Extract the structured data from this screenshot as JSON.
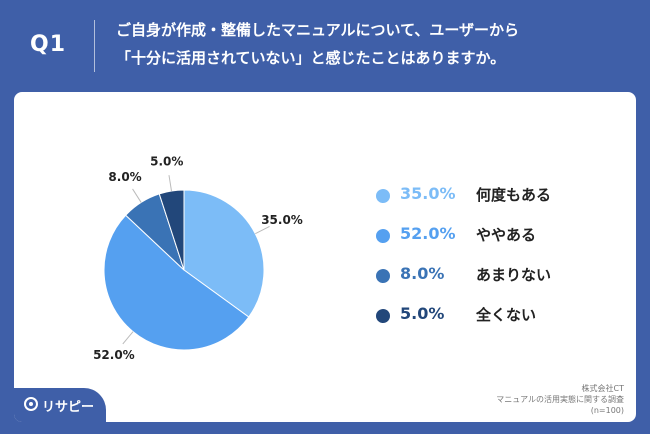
{
  "header": {
    "question_label": "Q1",
    "question_line1": "ご自身が作成・整備したマニュアルについて、ユーザーから",
    "question_line2": "「十分に活用されていない」と感じたことはありますか。"
  },
  "chart_data": {
    "type": "pie",
    "unit": "%",
    "slices": [
      {
        "label": "何度もある",
        "value": 35.0,
        "display": "35.0%",
        "color": "#7cbcf7"
      },
      {
        "label": "ややある",
        "value": 52.0,
        "display": "52.0%",
        "color": "#55a0f0"
      },
      {
        "label": "あまりない",
        "value": 8.0,
        "display": "8.0%",
        "color": "#3a73b5"
      },
      {
        "label": "全くない",
        "value": 5.0,
        "display": "5.0%",
        "color": "#22477a"
      }
    ],
    "legend_position": "right"
  },
  "source": {
    "line1": "株式会社CT",
    "line2": "マニュアルの活用実態に関する調査",
    "line3": "(n=100)"
  },
  "logo": {
    "text": "リサピー",
    "icon": "ricepy-logo-icon"
  },
  "colors": {
    "background": "#3f5fa8",
    "card": "#ffffff"
  }
}
